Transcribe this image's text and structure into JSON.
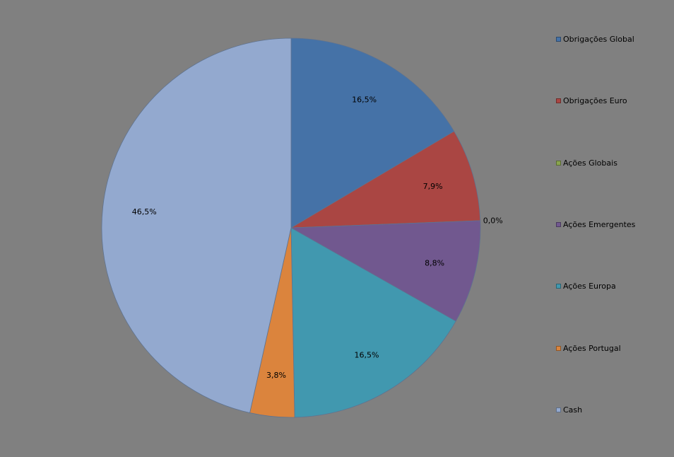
{
  "chart_data": {
    "type": "pie",
    "title": "",
    "legend_position": "right",
    "slices": [
      {
        "label": "Obrigações Global",
        "value": 16.5,
        "display": "16,5%",
        "color": "#4572A7"
      },
      {
        "label": "Obrigações Euro",
        "value": 7.9,
        "display": "7,9%",
        "color": "#AA4643"
      },
      {
        "label": "Ações Globais",
        "value": 0.0,
        "display": "0,0%",
        "color": "#89A54E"
      },
      {
        "label": "Ações Emergentes",
        "value": 8.8,
        "display": "8,8%",
        "color": "#71588F"
      },
      {
        "label": "Ações Europa",
        "value": 16.5,
        "display": "16,5%",
        "color": "#4198AF"
      },
      {
        "label": "Ações Portugal",
        "value": 3.8,
        "display": "3,8%",
        "color": "#DB843D"
      },
      {
        "label": "Cash",
        "value": 46.5,
        "display": "46,5%",
        "color": "#93A9CF"
      }
    ]
  }
}
